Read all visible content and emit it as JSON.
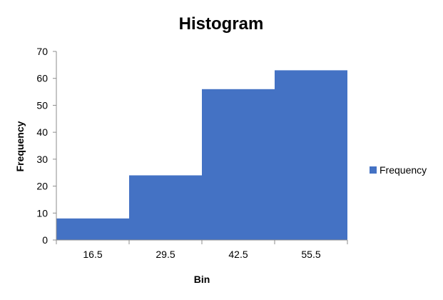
{
  "chart_data": {
    "type": "bar",
    "title": "Histogram",
    "xlabel": "Bin",
    "ylabel": "Frequency",
    "categories": [
      "16.5",
      "29.5",
      "42.5",
      "55.5"
    ],
    "series": [
      {
        "name": "Frequency",
        "values": [
          8,
          24,
          56,
          63
        ],
        "color": "#4472C4"
      }
    ],
    "ylim": [
      0,
      70
    ],
    "yticks": [
      0,
      10,
      20,
      30,
      40,
      50,
      60,
      70
    ],
    "grid": false,
    "legend": "right"
  }
}
